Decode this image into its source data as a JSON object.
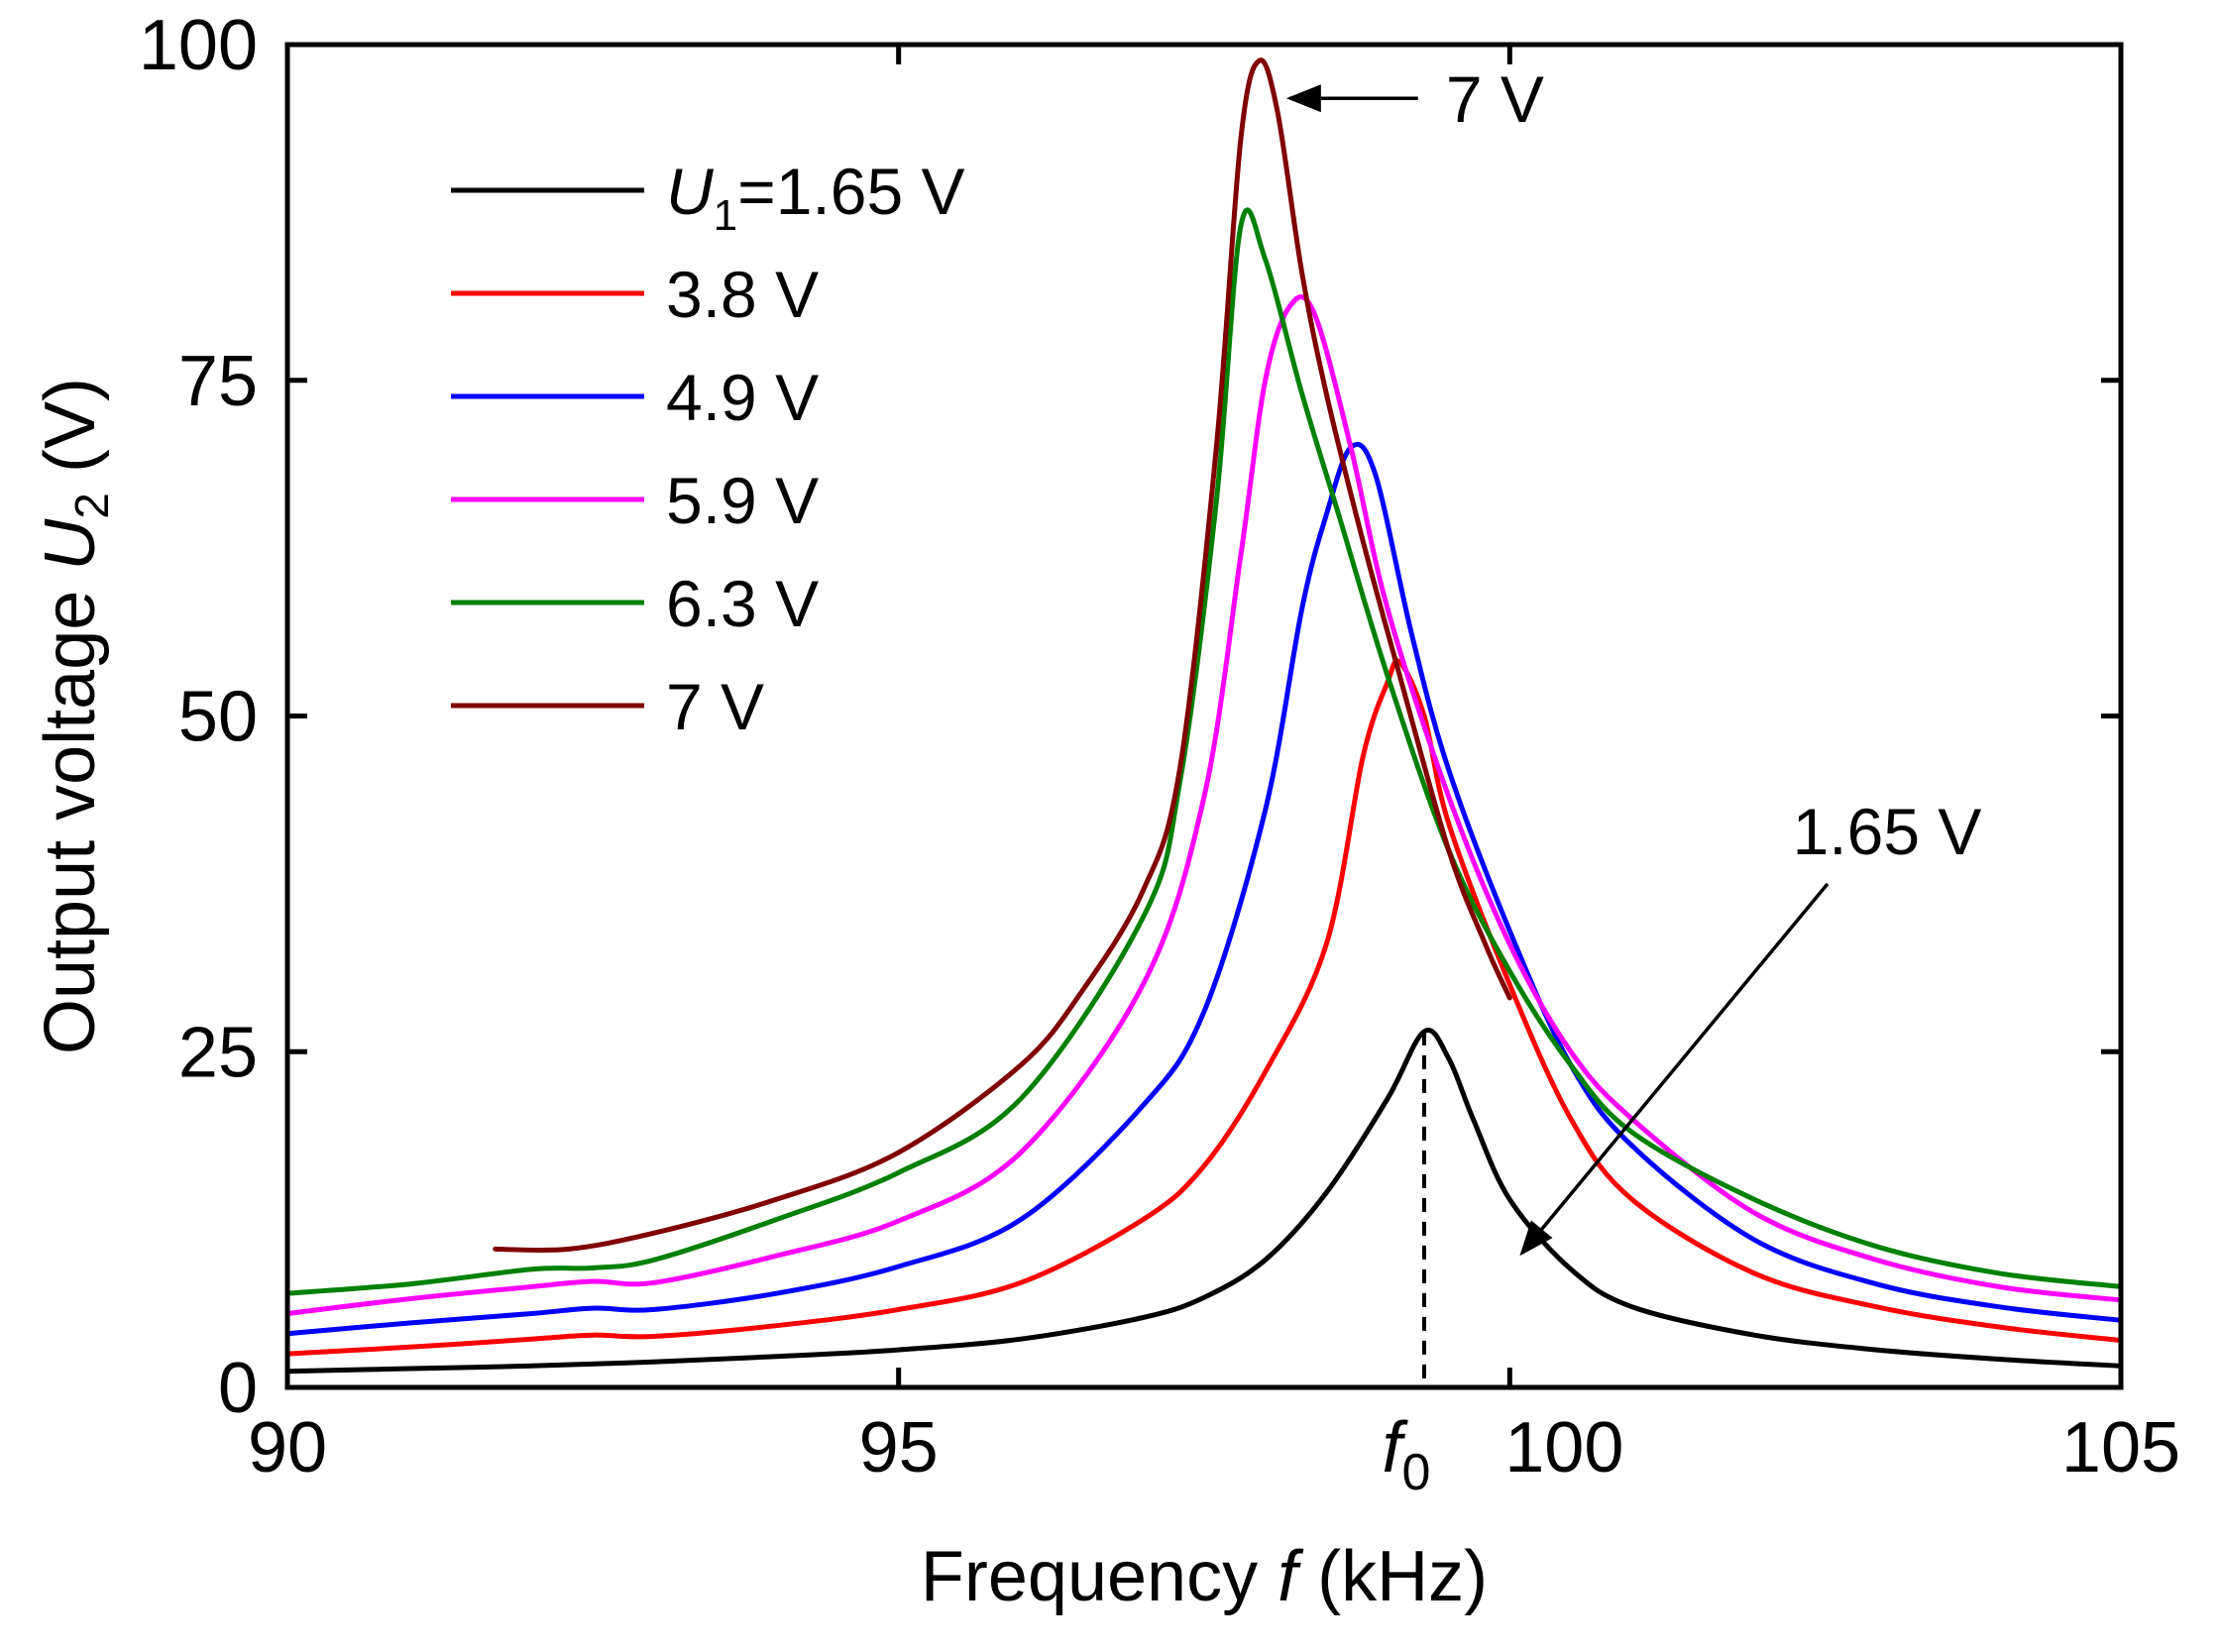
{
  "chart_data": {
    "type": "line",
    "title": "",
    "xlabel": "Frequency f (kHz)",
    "ylabel": "Output voltage U2 (V)",
    "xlabel_parts": [
      "Frequency ",
      "f",
      " (kHz)"
    ],
    "ylabel_parts": [
      "Output voltage ",
      "U",
      "2",
      " (V)"
    ],
    "xlim": [
      90,
      105
    ],
    "ylim": [
      0,
      100
    ],
    "xticks": [
      90,
      95,
      100,
      105
    ],
    "yticks": [
      0,
      25,
      50,
      75,
      100
    ],
    "grid": false,
    "legend_position": "top-left",
    "series": [
      {
        "name": "U1=1.65 V",
        "legend_parts": [
          "U",
          "1",
          "=1.65 V"
        ],
        "color": "#000000",
        "x": [
          90,
          91,
          92,
          93,
          94,
          95,
          96,
          97,
          97.5,
          98,
          98.5,
          99,
          99.3,
          99.5,
          99.7,
          100,
          100.5,
          101,
          102,
          103,
          104,
          105
        ],
        "y": [
          1.2,
          1.4,
          1.6,
          1.9,
          2.3,
          2.8,
          3.6,
          5.2,
          6.7,
          9.5,
          14.5,
          21.5,
          26.5,
          24.5,
          20,
          14,
          8.8,
          6,
          3.9,
          2.8,
          2.1,
          1.6
        ]
      },
      {
        "name": "3.8 V",
        "color": "#ff0000",
        "x": [
          90,
          91,
          92,
          92.5,
          93,
          94,
          95,
          96,
          97,
          97.5,
          98,
          98.5,
          98.8,
          99,
          99.1,
          99.3,
          99.5,
          100,
          100.5,
          101,
          102,
          103,
          104,
          105
        ],
        "y": [
          2.5,
          3,
          3.6,
          3.9,
          3.8,
          4.6,
          5.8,
          7.8,
          12.5,
          16.5,
          23.5,
          33,
          47,
          52.5,
          54,
          50,
          42,
          30,
          20,
          14,
          8.5,
          6,
          4.5,
          3.5
        ]
      },
      {
        "name": "4.9 V",
        "color": "#0000ff",
        "x": [
          90,
          91,
          92,
          92.5,
          93,
          94,
          95,
          96,
          97,
          97.5,
          98,
          98.3,
          98.5,
          98.7,
          98.9,
          99.2,
          99.5,
          100,
          100.5,
          101,
          102,
          103,
          104,
          105
        ],
        "y": [
          4,
          4.8,
          5.5,
          5.9,
          5.8,
          7,
          9,
          12.5,
          21,
          28,
          43,
          58,
          65,
          70,
          68,
          56,
          46,
          34,
          24,
          18,
          11,
          7.7,
          6,
          5
        ]
      },
      {
        "name": "5.9 V",
        "color": "#ff00ff",
        "x": [
          90,
          91,
          92,
          92.5,
          93,
          94,
          95,
          96,
          97,
          97.5,
          97.8,
          98,
          98.2,
          98.4,
          98.7,
          99,
          99.5,
          100,
          100.5,
          101,
          102,
          103,
          104,
          105
        ],
        "y": [
          5.5,
          6.6,
          7.5,
          7.9,
          7.8,
          9.8,
          12.4,
          17.5,
          30,
          44,
          62,
          75,
          80.5,
          80,
          70,
          58,
          44,
          33,
          25,
          20,
          13,
          9.5,
          7.5,
          6.5
        ]
      },
      {
        "name": "6.3 V",
        "color": "#008000",
        "x": [
          90,
          91,
          92,
          92.5,
          93,
          94,
          95,
          96,
          97,
          97.3,
          97.6,
          97.8,
          98,
          98.3,
          98.6,
          99,
          99.5,
          100,
          100.5,
          101,
          102,
          103,
          104,
          105
        ],
        "y": [
          7,
          7.7,
          8.8,
          8.9,
          9.5,
          12.5,
          16,
          21.5,
          35,
          45,
          66,
          86.5,
          84,
          74,
          65,
          53,
          40,
          31,
          24,
          19,
          14,
          10.5,
          8.5,
          7.5
        ]
      },
      {
        "name": "7 V",
        "color": "#800000",
        "x": [
          91.7,
          92.3,
          93,
          94,
          95,
          96,
          96.5,
          97,
          97.3,
          97.6,
          97.8,
          97.95,
          98.1,
          98.3,
          98.5,
          98.8,
          99.1,
          99.5,
          99.8,
          100
        ],
        "y": [
          10.3,
          10.3,
          11.5,
          14,
          17.5,
          24,
          29.5,
          37,
          46,
          70,
          93,
          98.8,
          95,
          83,
          74,
          63,
          53,
          40,
          33,
          29
        ]
      }
    ],
    "annotations": [
      {
        "name": "annotation-7v",
        "text": "7 V",
        "arrow_from": [
          99.25,
          96
        ],
        "arrow_to": [
          98.2,
          96
        ]
      },
      {
        "name": "annotation-1-65v",
        "text": "1.65 V",
        "arrow_from": [
          102.6,
          37.5
        ],
        "arrow_to": [
          100.1,
          10
        ]
      }
    ],
    "f0": {
      "x": 99.3,
      "y_top": 26.5,
      "label": "f",
      "label_sub": "0"
    }
  }
}
